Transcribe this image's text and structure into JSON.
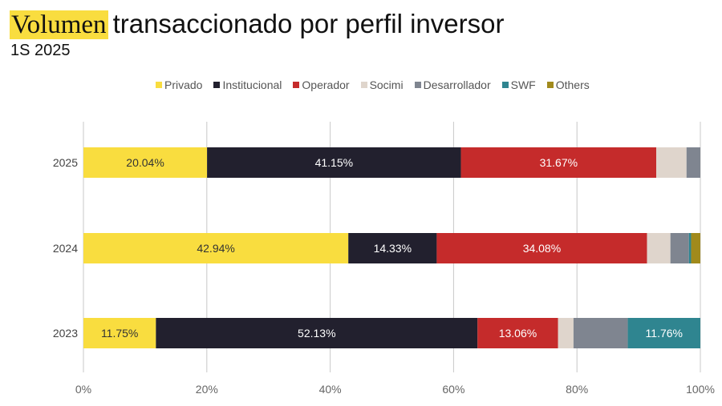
{
  "title_highlight": "Volumen",
  "title_rest": "transaccionado por perfil inversor",
  "subtitle": "1S 2025",
  "legend": [
    {
      "name": "Privado",
      "color": "#f9dd3f"
    },
    {
      "name": "Institucional",
      "color": "#22202e"
    },
    {
      "name": "Operador",
      "color": "#c52b2b"
    },
    {
      "name": "Socimi",
      "color": "#dfd5cc"
    },
    {
      "name": "Desarrollador",
      "color": "#7f8590"
    },
    {
      "name": "SWF",
      "color": "#2f8590"
    },
    {
      "name": "Others",
      "color": "#a18a1c"
    }
  ],
  "chart_data": {
    "type": "bar",
    "orientation": "horizontal",
    "stacked": true,
    "categories": [
      "2025",
      "2024",
      "2023"
    ],
    "series": [
      {
        "name": "Privado",
        "color": "#f9dd3f",
        "label_color": "#333333",
        "values": [
          20.04,
          42.94,
          11.75
        ],
        "labels": [
          "20.04%",
          "42.94%",
          "11.75%"
        ]
      },
      {
        "name": "Institucional",
        "color": "#22202e",
        "label_color": "#ffffff",
        "values": [
          41.15,
          14.33,
          52.13
        ],
        "labels": [
          "41.15%",
          "14.33%",
          "52.13%"
        ]
      },
      {
        "name": "Operador",
        "color": "#c52b2b",
        "label_color": "#ffffff",
        "values": [
          31.67,
          34.08,
          13.06
        ],
        "labels": [
          "31.67%",
          "34.08%",
          "13.06%"
        ]
      },
      {
        "name": "Socimi",
        "color": "#dfd5cc",
        "label_color": "#333333",
        "values": [
          4.9,
          3.8,
          2.5
        ],
        "labels": [
          "",
          "",
          ""
        ]
      },
      {
        "name": "Desarrollador",
        "color": "#7f8590",
        "label_color": "#ffffff",
        "values": [
          2.24,
          3.0,
          8.8
        ],
        "labels": [
          "",
          "",
          ""
        ]
      },
      {
        "name": "SWF",
        "color": "#2f8590",
        "label_color": "#ffffff",
        "values": [
          0,
          0.35,
          11.76
        ],
        "labels": [
          "",
          "",
          "11.76%"
        ]
      },
      {
        "name": "Others",
        "color": "#a18a1c",
        "label_color": "#ffffff",
        "values": [
          0,
          1.5,
          0
        ],
        "labels": [
          "",
          "",
          ""
        ]
      }
    ],
    "xlim": [
      0,
      100
    ],
    "xticks": [
      "0%",
      "20%",
      "40%",
      "60%",
      "80%",
      "100%"
    ],
    "grid": true,
    "legend_position": "top"
  }
}
